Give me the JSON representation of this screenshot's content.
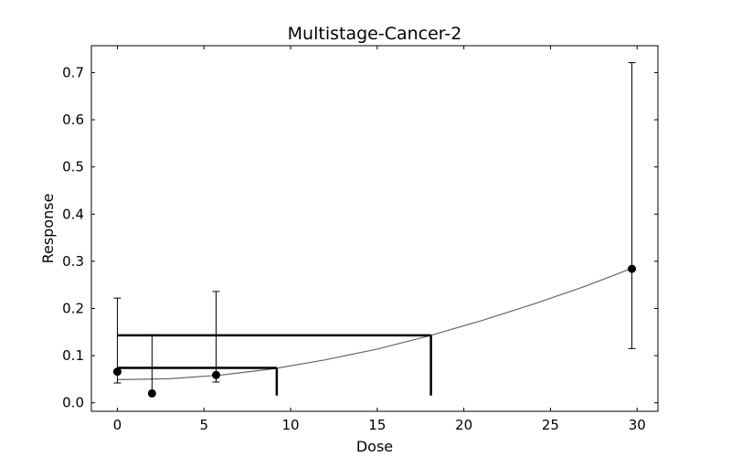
{
  "chart_data": {
    "type": "scatter",
    "title": "Multistage-Cancer-2",
    "xlabel": "Dose",
    "ylabel": "Response",
    "xlim": [
      -1.5,
      31.2
    ],
    "ylim": [
      -0.018,
      0.757
    ],
    "xticks": [
      0,
      5,
      10,
      15,
      20,
      25,
      30
    ],
    "yticks": [
      0.0,
      0.1,
      0.2,
      0.3,
      0.4,
      0.5,
      0.6,
      0.7
    ],
    "grid": false,
    "points": [
      {
        "x": 0,
        "y": 0.066,
        "lower": 0.042,
        "upper": 0.222
      },
      {
        "x": 2,
        "y": 0.02,
        "lower": 0.02,
        "upper": 0.144
      },
      {
        "x": 5.7,
        "y": 0.059,
        "lower": 0.044,
        "upper": 0.236
      },
      {
        "x": 29.7,
        "y": 0.284,
        "lower": 0.115,
        "upper": 0.721
      }
    ],
    "fit_curve": [
      {
        "x": 0,
        "y": 0.049
      },
      {
        "x": 3,
        "y": 0.051
      },
      {
        "x": 6,
        "y": 0.059
      },
      {
        "x": 9,
        "y": 0.072
      },
      {
        "x": 12,
        "y": 0.091
      },
      {
        "x": 15,
        "y": 0.114
      },
      {
        "x": 18,
        "y": 0.142
      },
      {
        "x": 21,
        "y": 0.174
      },
      {
        "x": 24,
        "y": 0.209
      },
      {
        "x": 27,
        "y": 0.247
      },
      {
        "x": 29.7,
        "y": 0.285
      }
    ],
    "benchmarks": [
      {
        "bmr_response": 0.074,
        "bmd": 9.2
      },
      {
        "bmr_response": 0.143,
        "bmd": 18.1
      }
    ]
  }
}
